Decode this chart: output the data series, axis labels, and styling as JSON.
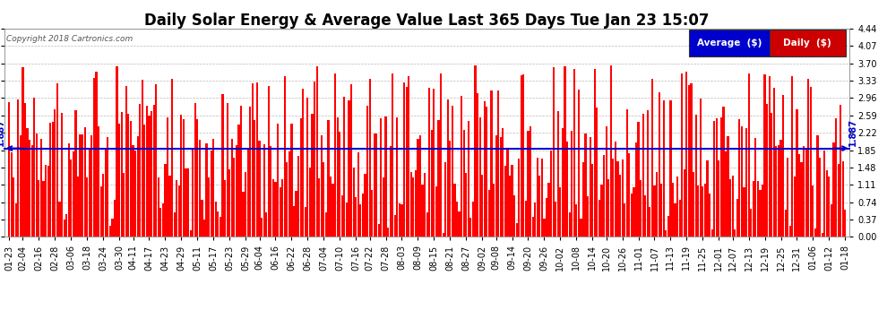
{
  "title": "Daily Solar Energy & Average Value Last 365 Days Tue Jan 23 15:07",
  "copyright": "Copyright 2018 Cartronics.com",
  "average_value": 1.887,
  "ylim": [
    0.0,
    4.44
  ],
  "yticks": [
    0.0,
    0.37,
    0.74,
    1.11,
    1.48,
    1.85,
    2.22,
    2.59,
    2.96,
    3.33,
    3.7,
    4.07,
    4.44
  ],
  "bar_color": "#FF0000",
  "average_line_color": "#0000CD",
  "background_color": "#FFFFFF",
  "plot_bg_color": "#FFFFFF",
  "grid_color": "#BBBBBB",
  "title_fontsize": 12,
  "tick_fontsize": 7,
  "legend_avg_color": "#0000CC",
  "legend_daily_color": "#CC0000",
  "num_bars": 365,
  "x_tick_labels": [
    "01-23",
    "02-04",
    "02-16",
    "02-28",
    "03-06",
    "03-18",
    "03-24",
    "03-30",
    "04-11",
    "04-17",
    "04-23",
    "04-29",
    "05-11",
    "05-17",
    "05-23",
    "05-29",
    "06-04",
    "06-16",
    "06-22",
    "06-28",
    "07-04",
    "07-10",
    "07-16",
    "07-22",
    "07-28",
    "08-03",
    "08-09",
    "08-15",
    "08-21",
    "08-27",
    "09-02",
    "09-08",
    "09-14",
    "09-20",
    "09-26",
    "10-02",
    "10-08",
    "10-14",
    "10-20",
    "10-26",
    "11-01",
    "11-07",
    "11-13",
    "11-19",
    "11-25",
    "12-01",
    "12-07",
    "12-13",
    "12-19",
    "12-25",
    "12-31",
    "01-06",
    "01-12",
    "01-18"
  ],
  "bar_width": 0.85,
  "avg_label": "1.887"
}
